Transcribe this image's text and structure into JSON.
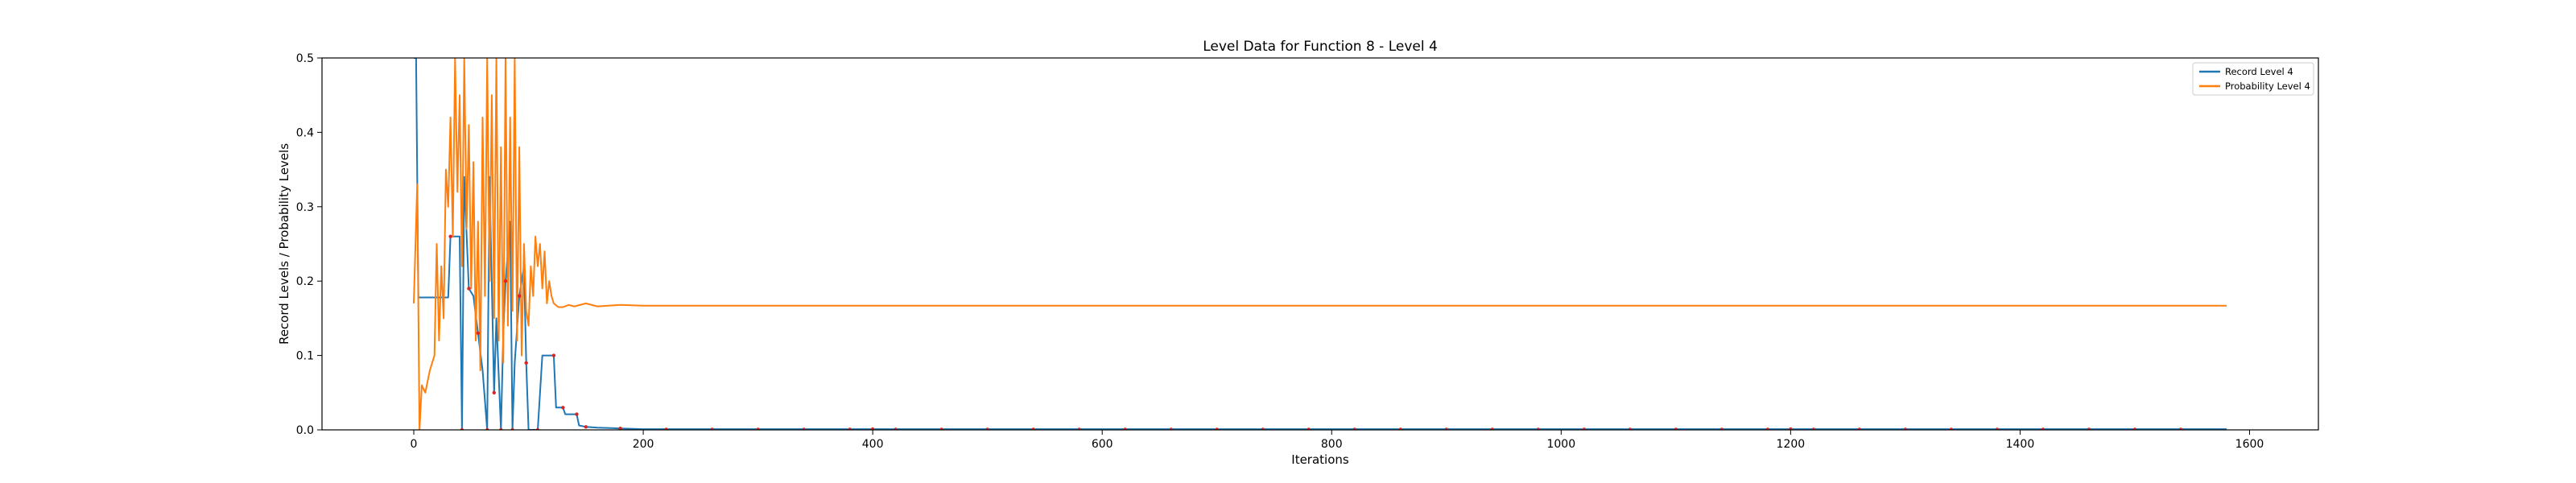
{
  "chart_data": {
    "type": "line",
    "title": "Level Data for Function 8 - Level 4",
    "xlabel": "Iterations",
    "ylabel": "Record Levels / Probability Levels",
    "xlim": [
      -80,
      1660
    ],
    "ylim": [
      0,
      0.5
    ],
    "xticks": [
      0,
      200,
      400,
      600,
      800,
      1000,
      1200,
      1400,
      1600
    ],
    "yticks": [
      0.0,
      0.1,
      0.2,
      0.3,
      0.4,
      0.5
    ],
    "grid": false,
    "legend_position": "top-right",
    "series": [
      {
        "name": "Record Level 4",
        "color": "#1f77b4",
        "points": [
          [
            0,
            0.5
          ],
          [
            2,
            0.5
          ],
          [
            4,
            0.178
          ],
          [
            30,
            0.178
          ],
          [
            32,
            0.26
          ],
          [
            40,
            0.26
          ],
          [
            42,
            0.0
          ],
          [
            44,
            0.34
          ],
          [
            48,
            0.19
          ],
          [
            52,
            0.18
          ],
          [
            56,
            0.13
          ],
          [
            60,
            0.08
          ],
          [
            64,
            0.0
          ],
          [
            66,
            0.34
          ],
          [
            70,
            0.05
          ],
          [
            72,
            0.15
          ],
          [
            76,
            0.0
          ],
          [
            78,
            0.13
          ],
          [
            80,
            0.2
          ],
          [
            84,
            0.28
          ],
          [
            86,
            0.0
          ],
          [
            88,
            0.09
          ],
          [
            92,
            0.18
          ],
          [
            96,
            0.22
          ],
          [
            98,
            0.09
          ],
          [
            100,
            0.0
          ],
          [
            108,
            0.0
          ],
          [
            112,
            0.1
          ],
          [
            122,
            0.1
          ],
          [
            124,
            0.03
          ],
          [
            130,
            0.03
          ],
          [
            132,
            0.021
          ],
          [
            142,
            0.021
          ],
          [
            144,
            0.006
          ],
          [
            150,
            0.004
          ],
          [
            160,
            0.003
          ],
          [
            180,
            0.002
          ],
          [
            200,
            0.001
          ],
          [
            400,
            0.001
          ],
          [
            800,
            0.001
          ],
          [
            1200,
            0.001
          ],
          [
            1580,
            0.001
          ]
        ]
      },
      {
        "name": "Probability Level 4",
        "color": "#ff7f0e",
        "points": [
          [
            0,
            0.17
          ],
          [
            3,
            0.33
          ],
          [
            5,
            0.0
          ],
          [
            7,
            0.06
          ],
          [
            10,
            0.05
          ],
          [
            14,
            0.08
          ],
          [
            18,
            0.1
          ],
          [
            20,
            0.25
          ],
          [
            22,
            0.12
          ],
          [
            24,
            0.22
          ],
          [
            26,
            0.15
          ],
          [
            28,
            0.35
          ],
          [
            30,
            0.3
          ],
          [
            32,
            0.42
          ],
          [
            34,
            0.26
          ],
          [
            36,
            0.5
          ],
          [
            38,
            0.32
          ],
          [
            40,
            0.45
          ],
          [
            42,
            0.22
          ],
          [
            44,
            0.5
          ],
          [
            46,
            0.27
          ],
          [
            48,
            0.41
          ],
          [
            50,
            0.19
          ],
          [
            52,
            0.36
          ],
          [
            54,
            0.12
          ],
          [
            56,
            0.28
          ],
          [
            58,
            0.08
          ],
          [
            60,
            0.42
          ],
          [
            62,
            0.18
          ],
          [
            64,
            0.5
          ],
          [
            66,
            0.2
          ],
          [
            68,
            0.45
          ],
          [
            70,
            0.15
          ],
          [
            72,
            0.5
          ],
          [
            74,
            0.12
          ],
          [
            76,
            0.38
          ],
          [
            78,
            0.09
          ],
          [
            80,
            0.5
          ],
          [
            82,
            0.14
          ],
          [
            84,
            0.42
          ],
          [
            86,
            0.16
          ],
          [
            88,
            0.5
          ],
          [
            90,
            0.12
          ],
          [
            92,
            0.38
          ],
          [
            94,
            0.1
          ],
          [
            96,
            0.25
          ],
          [
            98,
            0.16
          ],
          [
            100,
            0.14
          ],
          [
            102,
            0.22
          ],
          [
            104,
            0.18
          ],
          [
            106,
            0.26
          ],
          [
            108,
            0.22
          ],
          [
            110,
            0.25
          ],
          [
            112,
            0.19
          ],
          [
            114,
            0.24
          ],
          [
            116,
            0.17
          ],
          [
            118,
            0.2
          ],
          [
            120,
            0.18
          ],
          [
            122,
            0.17
          ],
          [
            126,
            0.165
          ],
          [
            130,
            0.165
          ],
          [
            135,
            0.168
          ],
          [
            140,
            0.166
          ],
          [
            150,
            0.17
          ],
          [
            160,
            0.166
          ],
          [
            180,
            0.168
          ],
          [
            200,
            0.167
          ],
          [
            260,
            0.167
          ],
          [
            400,
            0.167
          ],
          [
            800,
            0.167
          ],
          [
            1200,
            0.167
          ],
          [
            1580,
            0.167
          ]
        ]
      }
    ]
  }
}
